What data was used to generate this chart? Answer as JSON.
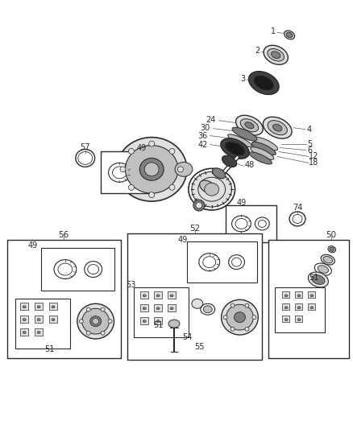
{
  "bg_color": "#ffffff",
  "lc": "#2a2a2a",
  "fig_w": 4.38,
  "fig_h": 5.33,
  "dpi": 100,
  "gray_dark": "#404040",
  "gray_mid": "#808080",
  "gray_light": "#c0c0c0",
  "gray_vlight": "#e0e0e0"
}
